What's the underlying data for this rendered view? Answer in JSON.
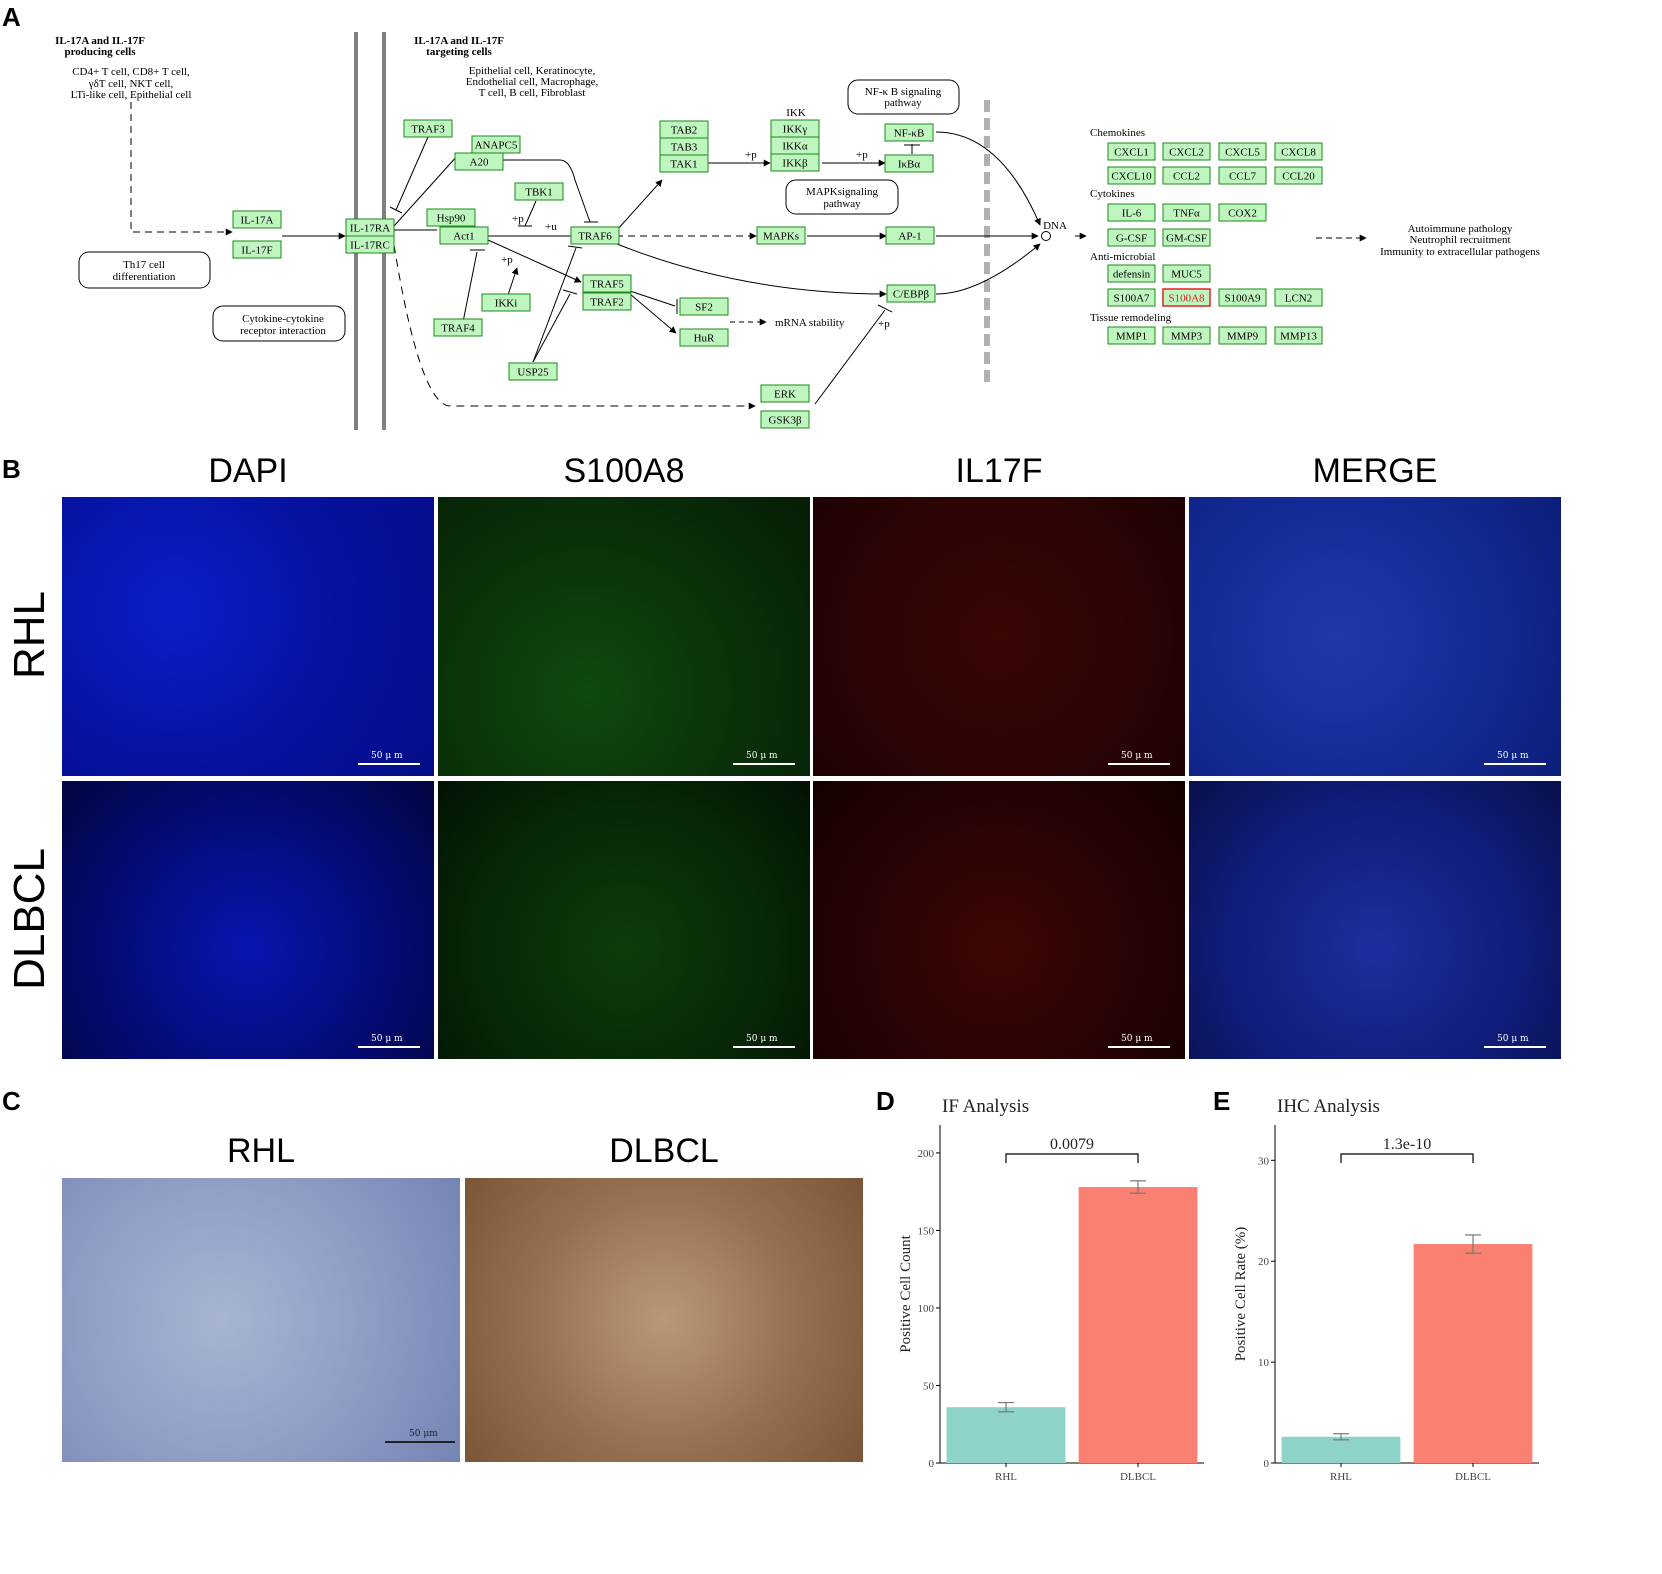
{
  "panels": {
    "A": "A",
    "B": "B",
    "C": "C",
    "D": "D",
    "E": "E"
  },
  "pathway": {
    "producing_title_1": "IL-17A and IL-17F",
    "producing_title_2": "producing cells",
    "producing_cells_1": "CD4+ T cell, CD8+ T cell,",
    "producing_cells_2": "γδT cell, NKT cell,",
    "producing_cells_3": "LTi-like cell, Epithelial cell",
    "targeting_title_1": "IL-17A and IL-17F",
    "targeting_title_2": "targeting cells",
    "targeting_cells_1": "Epithelial cell, Keratinocyte,",
    "targeting_cells_2": "Endothelial cell, Macrophage,",
    "targeting_cells_3": "T cell, B cell, Fibroblast",
    "th17_1": "Th17 cell",
    "th17_2": "differentiation",
    "cytokine_1": "Cytokine-cytokine",
    "cytokine_2": "receptor interaction",
    "nfkb_path_1": "NF-κ B signaling",
    "nfkb_path_2": "pathway",
    "mapk_path_1": "MAPKsignaling",
    "mapk_path_2": "pathway",
    "ikk_label": "IKK",
    "plus_p": "+p",
    "plus_u": "+u",
    "dna": "DNA",
    "mrna": "mRNA stability",
    "outcome_1": "Autoimmune pathology",
    "outcome_2": "Neutrophil recruitment",
    "outcome_3": "Immunity to extracellular pathogens",
    "nodes": {
      "il17a": "IL-17A",
      "il17f": "IL-17F",
      "il17ra": "IL-17RA",
      "il17rc": "IL-17RC",
      "traf3": "TRAF3",
      "anapc5": "ANAPC5",
      "a20": "A20",
      "tbk1": "TBK1",
      "hsp90": "Hsp90",
      "act1": "Act1",
      "traf6": "TRAF6",
      "tab2": "TAB2",
      "tab3": "TAB3",
      "tak1": "TAK1",
      "ikkg": "IKKγ",
      "ikka": "IKKα",
      "ikkb": "IKKβ",
      "nfkb": "NF-κB",
      "ikba": "IκBα",
      "mapks": "MAPKs",
      "ap1": "AP-1",
      "traf5": "TRAF5",
      "traf2": "TRAF2",
      "sf2": "SF2",
      "hur": "HuR",
      "ikki": "IKKi",
      "traf4": "TRAF4",
      "usp25": "USP25",
      "erk": "ERK",
      "gsk3b": "GSK3β",
      "cebpb": "C/EBPβ"
    },
    "chemokines_label": "Chemokines",
    "chemokines": [
      "CXCL1",
      "CXCL2",
      "CXCL5",
      "CXCL8",
      "CXCL10",
      "CCL2",
      "CCL7",
      "CCL20"
    ],
    "cytokines_label": "Cytokines",
    "cytokines": [
      "IL-6",
      "TNFα",
      "COX2",
      "G-CSF",
      "GM-CSF"
    ],
    "antimicrobial_label": "Anti-microbial",
    "antimicrobial": [
      "defensin",
      "MUC5",
      "S100A7",
      "S100A8",
      "S100A9",
      "LCN2"
    ],
    "tissue_label": "Tissue remodeling",
    "tissue": [
      "MMP1",
      "MMP3",
      "MMP9",
      "MMP13"
    ]
  },
  "if_panel": {
    "columns": [
      "DAPI",
      "S100A8",
      "IL17F",
      "MERGE"
    ],
    "rows": [
      "RHL",
      "DLBCL"
    ],
    "scale": "50 μ m"
  },
  "ihc_panel": {
    "columns": [
      "RHL",
      "DLBCL"
    ],
    "scale": "50 μm"
  },
  "chart_data": [
    {
      "type": "bar",
      "title": "IF Analysis",
      "categories": [
        "RHL",
        "DLBCL"
      ],
      "values": [
        36,
        178
      ],
      "error": [
        3,
        4
      ],
      "colors": [
        "#8DD3C7",
        "#FA8072"
      ],
      "ylabel": "Positive Cell Count",
      "xlabel": "",
      "ylim": [
        0,
        218
      ],
      "yticks": [
        0,
        50,
        100,
        150,
        200
      ],
      "annotation": "0.0079",
      "grid": false
    },
    {
      "type": "bar",
      "title": "IHC Analysis",
      "categories": [
        "RHL",
        "DLBCL"
      ],
      "values": [
        2.6,
        21.7
      ],
      "error": [
        0.3,
        0.9
      ],
      "colors": [
        "#8DD3C7",
        "#FA8072"
      ],
      "ylabel": "Positive Cell Rate (%)",
      "xlabel": "",
      "ylim": [
        0,
        33.5
      ],
      "yticks": [
        0,
        10,
        20,
        30
      ],
      "annotation": "1.3e-10",
      "grid": false
    }
  ]
}
